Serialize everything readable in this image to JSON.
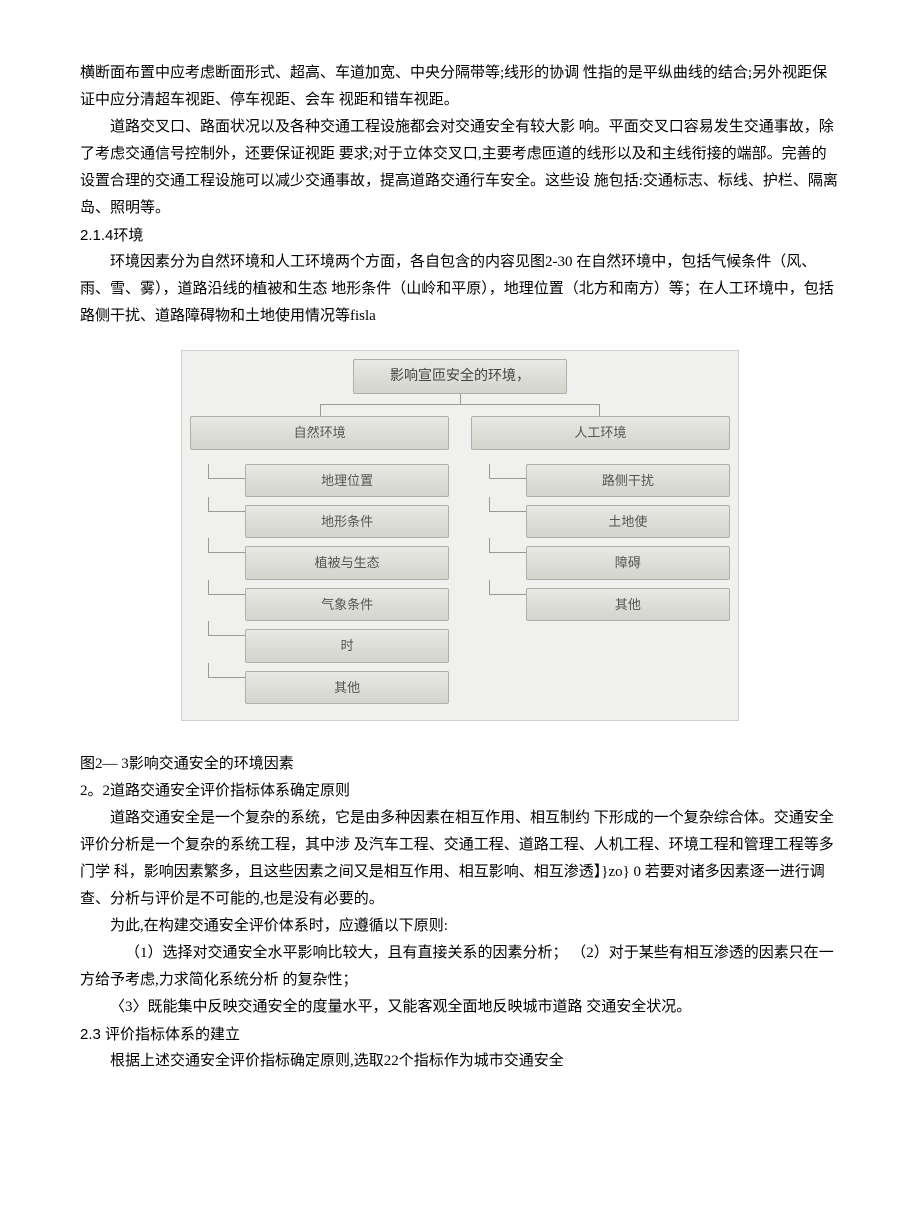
{
  "para1": "横断面布置中应考虑断面形式、超高、车道加宽、中央分隔带等;线形的协调 性指的是平纵曲线的结合;另外视距保证中应分清超车视距、停车视距、会车 视距和错车视距。",
  "para2": "道路交叉口、路面状况以及各种交通工程设施都会对交通安全有较大影 响。平面交叉口容易发生交通事故，除了考虑交通信号控制外，还要保证视距 要求;对于立体交叉口,主要考虑匝道的线形以及和主线衔接的端部。完善的 设置合理的交通工程设施可以减少交通事故，提高道路交通行车安全。这些设 施包括:交通标志、标线、护栏、隔离岛、照明等。",
  "sect214": "2.1.4环境",
  "para3": "环境因素分为自然环境和人工环境两个方面，各自包含的内容见图2-30 在自然环境中，包括气候条件（风、雨、雪、雾），道路沿线的植被和生态 地形条件（山岭和平原），地理位置（北方和南方）等；在人工环境中，包括 路侧干扰、道路障碍物和土地使用情况等fisla",
  "diagram": {
    "root": "影响宣匝安全的环境，",
    "left_head": "自然环境",
    "right_head": "人工环境",
    "left": [
      "地理位置",
      "地形条件",
      "植被与生态",
      "气象条件",
      "时",
      "其他"
    ],
    "right": [
      "路侧干扰",
      "土地使",
      "障碍",
      "其他"
    ]
  },
  "fig_caption": "图2— 3影响交通安全的环境因素",
  "sect22": "2。2道路交通安全评价指标体系确定原则",
  "para4": "道路交通安全是一个复杂的系统，它是由多种因素在相互作用、相互制约 下形成的一个复杂综合体。交通安全评价分析是一个复杂的系统工程，其中涉 及汽车工程、交通工程、道路工程、人机工程、环境工程和管理工程等多门学 科，影响因素繁多，且这些因素之间又是相互作用、相互影响、相互渗透】}zo} 0 若要对诸多因素逐一进行调查、分析与评价是不可能的,也是没有必要的。",
  "para5": "为此,在构建交通安全评价体系时，应遵循以下原则:",
  "para6": "（1）选择对交通安全水平影响比较大，且有直接关系的因素分析；  （2）对于某些有相互渗透的因素只在一方给予考虑,力求简化系统分析 的复杂性；",
  "para7": "〈3〉既能集中反映交通安全的度量水平，又能客观全面地反映城市道路 交通安全状况。",
  "sect23": "2.3 评价指标体系的建立",
  "para8": "根据上述交通安全评价指标确定原则,选取22个指标作为城市交通安全"
}
